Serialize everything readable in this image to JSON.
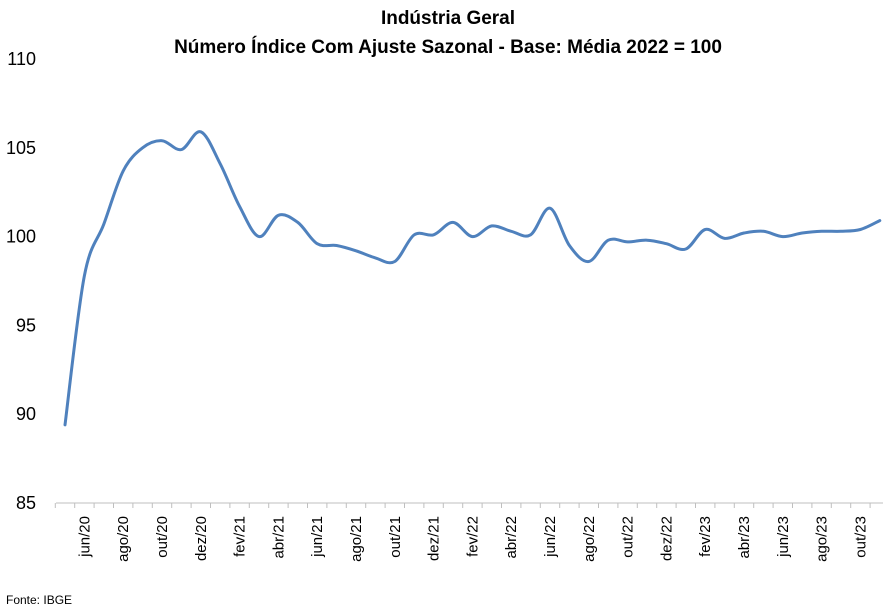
{
  "chart_data": {
    "type": "line",
    "title": "Indústria Geral",
    "subtitle": "Número Índice Com Ajuste Sazonal - Base: Média 2022 = 100",
    "xlabel": "",
    "ylabel": "",
    "ylim": [
      85,
      110
    ],
    "yticks": [
      85,
      90,
      95,
      100,
      105,
      110
    ],
    "x_tick_labels": [
      "jun/20",
      "ago/20",
      "out/20",
      "dez/20",
      "fev/21",
      "abr/21",
      "jun/21",
      "ago/21",
      "out/21",
      "dez/21",
      "fev/22",
      "abr/22",
      "jun/22",
      "ago/22",
      "out/22",
      "dez/22",
      "fev/23",
      "abr/23",
      "jun/23",
      "ago/23",
      "out/23"
    ],
    "grid": false,
    "legend": "none",
    "line_color": "#4f81bd",
    "series": [
      {
        "x": [
          "mai/20",
          "jun/20",
          "jul/20",
          "ago/20",
          "set/20",
          "out/20",
          "nov/20",
          "dez/20",
          "jan/21",
          "fev/21",
          "mar/21",
          "abr/21",
          "mai/21",
          "jun/21",
          "jul/21",
          "ago/21",
          "set/21",
          "out/21",
          "nov/21",
          "dez/21",
          "jan/22",
          "fev/22",
          "mar/22",
          "abr/22",
          "mai/22",
          "jun/22",
          "jul/22",
          "ago/22",
          "set/22",
          "out/22",
          "nov/22",
          "dez/22",
          "jan/23",
          "fev/23",
          "mar/23",
          "abr/23",
          "mai/23",
          "jun/23",
          "jul/23",
          "ago/23",
          "set/23",
          "out/23",
          "nov/23"
        ],
        "values": [
          89.4,
          97.8,
          100.7,
          103.7,
          105.0,
          105.4,
          104.9,
          105.9,
          104.1,
          101.7,
          100.0,
          101.2,
          100.8,
          99.6,
          99.5,
          99.2,
          98.8,
          98.6,
          100.1,
          100.1,
          100.8,
          100.0,
          100.6,
          100.3,
          100.1,
          101.6,
          99.5,
          98.6,
          99.8,
          99.7,
          99.8,
          99.6,
          99.3,
          100.4,
          99.9,
          100.2,
          100.3,
          100.0,
          100.2,
          100.3,
          100.3,
          100.4,
          100.9
        ]
      }
    ],
    "source": "Fonte: IBGE"
  }
}
